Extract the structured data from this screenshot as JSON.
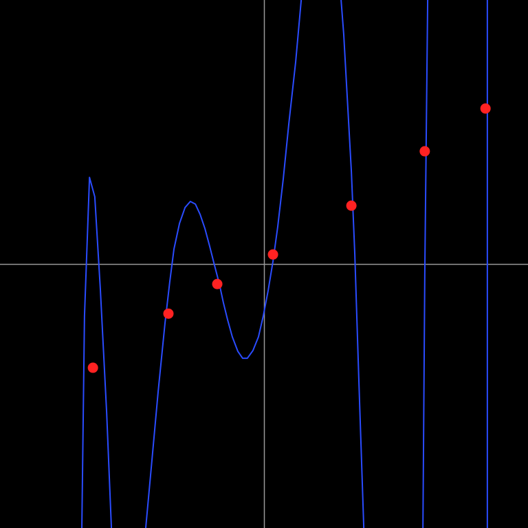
{
  "chart_data": {
    "type": "scatter",
    "title": "",
    "xlabel": "",
    "ylabel": "",
    "xlim": [
      -10,
      10
    ],
    "ylim": [
      -10,
      10
    ],
    "grid": false,
    "axes_through_origin": true,
    "colors": {
      "background": "#000000",
      "axes": "#9a9a9a",
      "curve": "#2a4cff",
      "points": "#ff2222"
    },
    "points": [
      {
        "x": -6.48,
        "y": -3.93
      },
      {
        "x": -3.62,
        "y": -1.88
      },
      {
        "x": -1.77,
        "y": -0.76
      },
      {
        "x": 0.34,
        "y": 0.36
      },
      {
        "x": 3.31,
        "y": 2.21
      },
      {
        "x": 6.09,
        "y": 4.27
      },
      {
        "x": 8.39,
        "y": 5.89
      }
    ],
    "curve_segments": [
      [
        [
          -6.9,
          -10
        ],
        [
          -6.8,
          -1.98
        ],
        [
          -6.61,
          3.28
        ],
        [
          -6.41,
          2.55
        ],
        [
          -6.2,
          -0.94
        ],
        [
          -5.96,
          -5.63
        ],
        [
          -5.78,
          -10
        ]
      ],
      [
        [
          -4.48,
          -10
        ],
        [
          -4.27,
          -7.71
        ],
        [
          -4.01,
          -4.84
        ],
        [
          -3.75,
          -2.24
        ],
        [
          -3.57,
          -0.68
        ],
        [
          -3.41,
          0.57
        ],
        [
          -3.2,
          1.54
        ],
        [
          -2.99,
          2.14
        ],
        [
          -2.79,
          2.37
        ],
        [
          -2.6,
          2.27
        ],
        [
          -2.42,
          1.88
        ],
        [
          -2.24,
          1.35
        ],
        [
          -2.06,
          0.68
        ],
        [
          -1.88,
          -0.03
        ],
        [
          -1.69,
          -0.76
        ],
        [
          -1.54,
          -1.46
        ],
        [
          -1.38,
          -2.11
        ],
        [
          -1.2,
          -2.76
        ],
        [
          -0.99,
          -3.31
        ],
        [
          -0.81,
          -3.57
        ],
        [
          -0.63,
          -3.57
        ],
        [
          -0.42,
          -3.28
        ],
        [
          -0.21,
          -2.76
        ],
        [
          -0.03,
          -1.98
        ],
        [
          0.16,
          -0.99
        ],
        [
          0.34,
          0.1
        ],
        [
          0.52,
          1.41
        ],
        [
          0.73,
          3.23
        ],
        [
          0.94,
          5.31
        ],
        [
          1.2,
          7.66
        ],
        [
          1.41,
          10
        ]
      ],
      [
        [
          2.92,
          10
        ],
        [
          3.02,
          8.7
        ],
        [
          3.18,
          5.83
        ],
        [
          3.31,
          3.49
        ],
        [
          3.44,
          0.36
        ],
        [
          3.59,
          -4.32
        ],
        [
          3.78,
          -10
        ]
      ],
      [
        [
          6.02,
          -10
        ],
        [
          6.09,
          -0.42
        ],
        [
          6.2,
          10
        ]
      ],
      [
        [
          8.46,
          10
        ],
        [
          8.46,
          -10
        ]
      ]
    ]
  }
}
